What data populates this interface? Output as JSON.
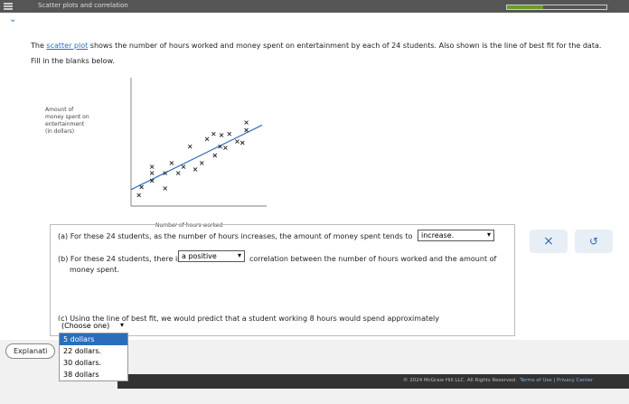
{
  "header": {
    "title": "Scatter plots and correlation"
  },
  "intro": {
    "before": "The ",
    "link": "scatter plot",
    "after": " shows the number of hours worked and money spent on entertainment by each of 24 students. Also shown is the line of best fit for the data."
  },
  "instruction": "Fill in the blanks below.",
  "plot": {
    "type": "scatter",
    "y_label": [
      "Amount of",
      "money spent on",
      "entertainment",
      "(in dollars)"
    ],
    "x_label": "Number of hours worked",
    "xlim": [
      0,
      10
    ],
    "ylim": [
      0,
      100
    ],
    "x": [
      0.6,
      0.8,
      1.6,
      2.6,
      1.6,
      2.6,
      1.6,
      3.1,
      3.6,
      4.0,
      4.9,
      4.5,
      5.4,
      5.8,
      6.4,
      6.3,
      6.9,
      6.8,
      7.2,
      8.1,
      8.5,
      8.8,
      8.8,
      7.5
    ],
    "y": [
      8.6,
      15,
      20,
      14,
      26,
      26,
      31,
      34,
      26,
      31,
      29,
      47,
      34,
      53,
      40,
      57,
      56,
      47,
      46,
      51,
      50,
      66,
      60,
      57
    ],
    "fit_line": {
      "intercept": 13,
      "slope": 5.1
    },
    "color": "#222",
    "line_color": "#2a6ebb"
  },
  "questions": {
    "a": {
      "label": "(a)",
      "text": "For these 24 students, as the number of hours increases, the amount of money spent tends to",
      "answer": "increase."
    },
    "b": {
      "label": "(b)",
      "before": "For these 24 students, there is",
      "answer": "a positive",
      "after": "correlation between the number of hours worked and the amount of",
      "after2": "money spent."
    },
    "c": {
      "label": "(c)",
      "text": "Using the line of best fit, we would predict that a student working 8 hours would spend approximately",
      "answer": "(Choose one)",
      "options": [
        "5 dollars",
        "22 dollars.",
        "30 dollars.",
        "38 dollars"
      ]
    }
  },
  "explanation": "Explanati",
  "footer": {
    "copyright": "© 2024 McGraw Hill LLC. All Rights Reserved.",
    "terms": "Terms of Use",
    "privacy": "Privacy Center"
  }
}
